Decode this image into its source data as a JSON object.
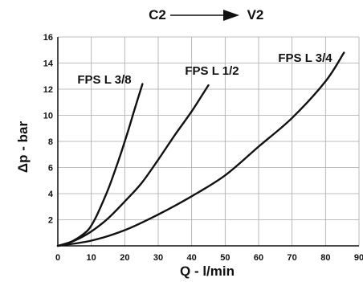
{
  "header": {
    "from_label": "C2",
    "to_label": "V2"
  },
  "chart_data": {
    "type": "line",
    "title": "",
    "xlabel": "Q - l/min",
    "ylabel": "Δp - bar",
    "xlim": [
      0,
      90
    ],
    "ylim": [
      0,
      16
    ],
    "xticks": [
      0,
      10,
      20,
      30,
      40,
      50,
      60,
      70,
      80,
      90
    ],
    "yticks": [
      2,
      4,
      6,
      8,
      10,
      12,
      14,
      16
    ],
    "x_tick_labels": [
      "0",
      "10",
      "20",
      "30",
      "40",
      "50",
      "60",
      "70",
      "80",
      "90"
    ],
    "y_tick_labels": [
      "2",
      "4",
      "6",
      "8",
      "10",
      "12",
      "14",
      "16"
    ],
    "grid": true,
    "legend": "none (labels placed near curves)",
    "series": [
      {
        "name": "FPS L 3/8",
        "x": [
          0,
          3,
          6,
          9,
          11,
          13,
          15,
          17,
          19,
          21,
          23,
          25.3
        ],
        "y": [
          0,
          0.2,
          0.6,
          1.2,
          2.0,
          3.1,
          4.3,
          5.7,
          7.2,
          8.8,
          10.5,
          12.4
        ]
      },
      {
        "name": "FPS L 1/2",
        "x": [
          0,
          5,
          10,
          15,
          20,
          25,
          30,
          35,
          40,
          45
        ],
        "y": [
          0,
          0.4,
          1.1,
          2.1,
          3.4,
          4.8,
          6.6,
          8.5,
          10.3,
          12.3
        ]
      },
      {
        "name": "FPS L 3/4",
        "x": [
          0,
          10,
          20,
          30,
          40,
          50,
          60,
          70,
          80,
          85.5
        ],
        "y": [
          0,
          0.4,
          1.2,
          2.4,
          3.8,
          5.4,
          7.6,
          9.8,
          12.6,
          14.8
        ]
      }
    ]
  }
}
